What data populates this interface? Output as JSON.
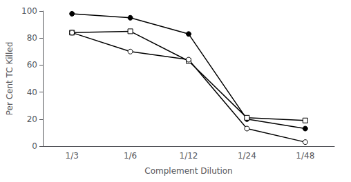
{
  "chart_data": {
    "type": "line",
    "xlabel": "Complement Dilution",
    "ylabel": "Per Cent TC Killed",
    "categories": [
      "1/3",
      "1/6",
      "1/12",
      "1/24",
      "1/48"
    ],
    "series": [
      {
        "color": "#000000",
        "marker": "filled_circle",
        "values": [
          98,
          95,
          83,
          20,
          13
        ]
      },
      {
        "color": "#000000",
        "marker": "open_square",
        "values": [
          84,
          85,
          63,
          21,
          19
        ]
      },
      {
        "color": "#000000",
        "marker": "open_circle",
        "values": [
          84,
          70,
          64,
          13,
          3
        ]
      }
    ],
    "ylim": [
      0,
      100
    ],
    "yticks": [
      0,
      20,
      40,
      60,
      80,
      100
    ],
    "grid": false
  }
}
